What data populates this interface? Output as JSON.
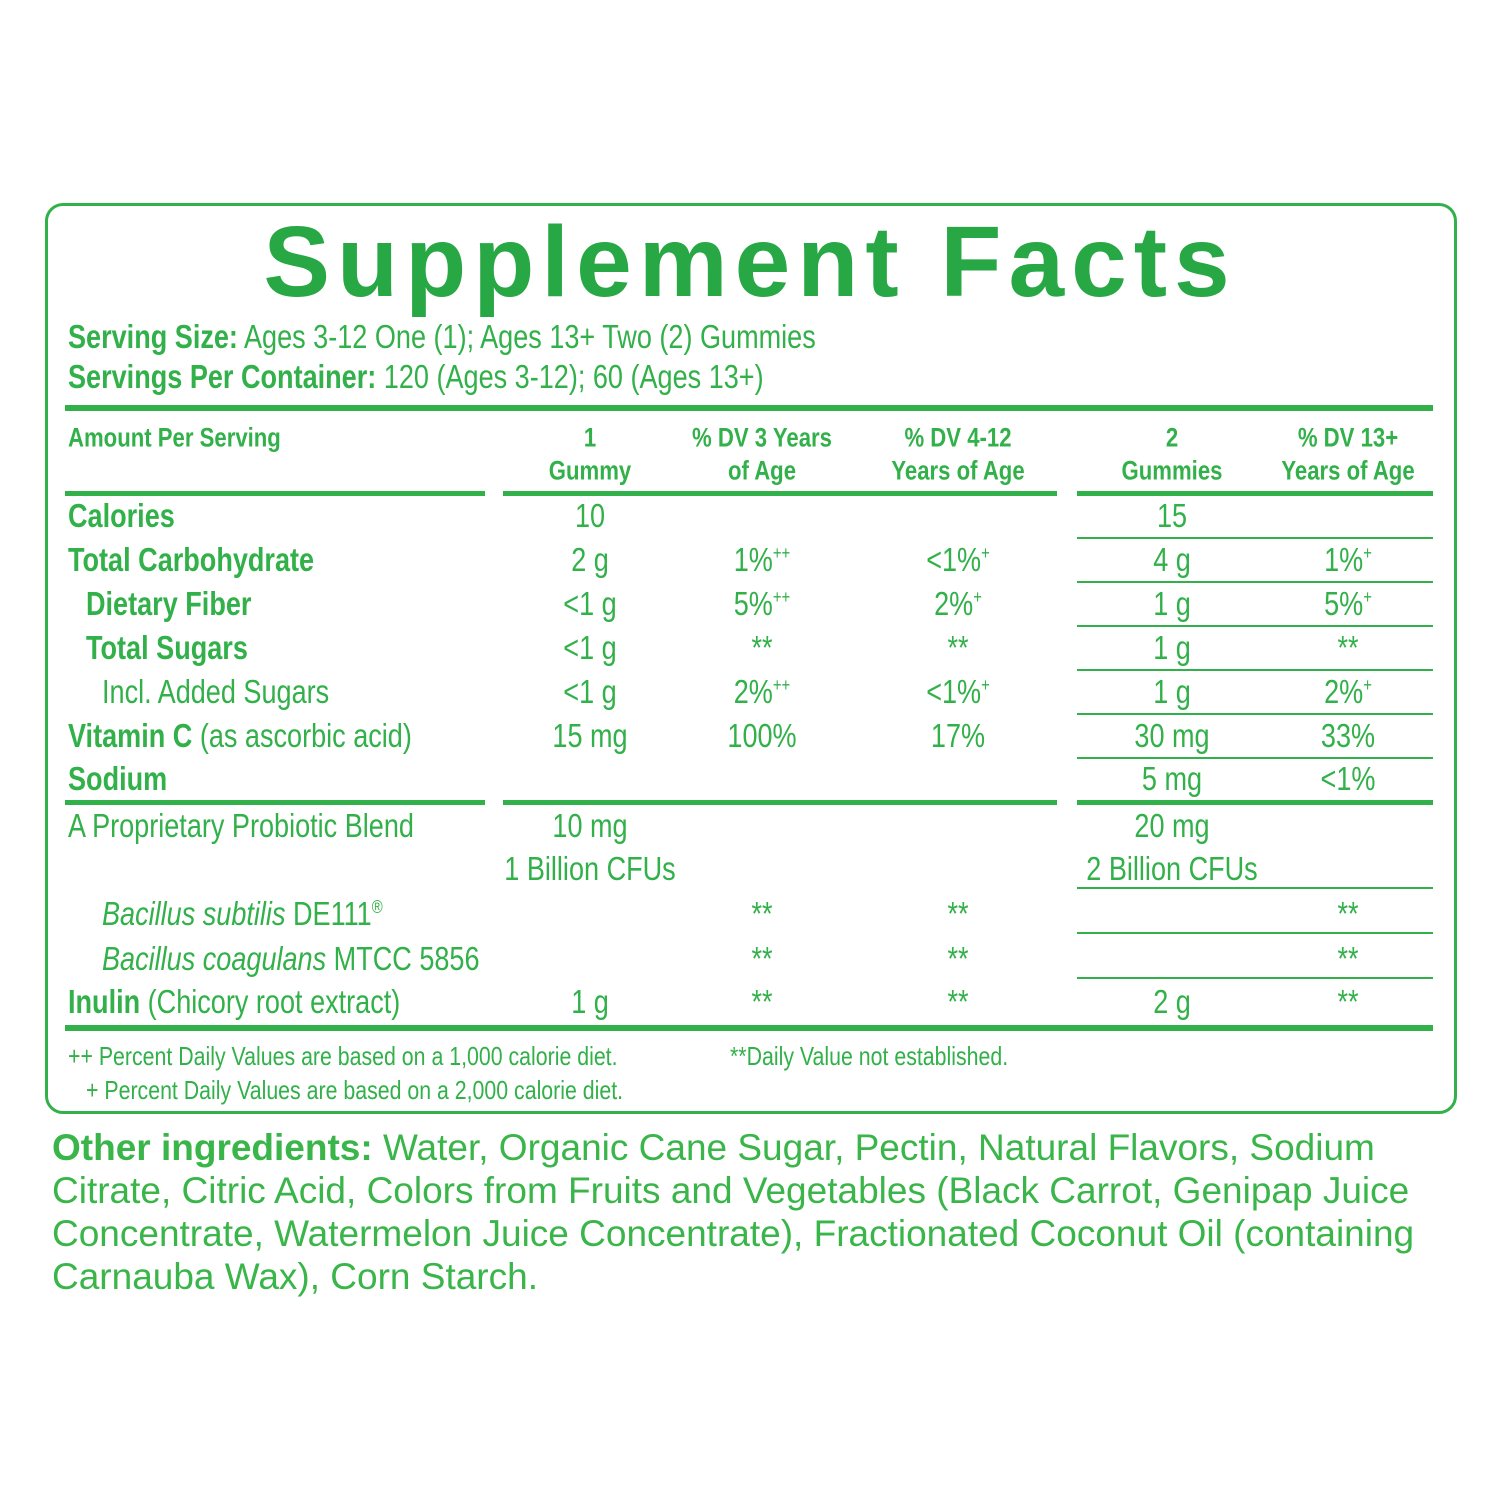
{
  "title": "Supplement Facts",
  "serving_size": {
    "label": "Serving Size:",
    "text": "Ages 3-12 One (1); Ages 13+ Two (2) Gummies"
  },
  "servings_per_container": {
    "label": "Servings Per Container:",
    "text": "120 (Ages 3-12); 60 (Ages 13+)"
  },
  "table": {
    "header": [
      [
        "Amount Per Serving"
      ],
      [
        "1",
        "Gummy"
      ],
      [
        "% DV 3 Years",
        "of Age"
      ],
      [
        "% DV 4-12",
        "Years of Age"
      ],
      [
        "2",
        "Gummies"
      ],
      [
        "% DV 13+",
        "Years of Age"
      ]
    ],
    "rows": [
      {
        "name": "Calories",
        "style": "bold",
        "indent": 0,
        "cells": [
          "10",
          null,
          null,
          "15",
          null
        ]
      },
      {
        "name": "Total Carbohydrate",
        "style": "bold",
        "indent": 0,
        "cells": [
          "2 g",
          {
            "text": "1%",
            "sup": "++"
          },
          {
            "text": "<1%",
            "sup": "+"
          },
          "4 g",
          {
            "text": "1%",
            "sup": "+"
          }
        ]
      },
      {
        "name": "Dietary Fiber",
        "style": "bold",
        "indent": 1,
        "cells": [
          "<1 g",
          {
            "text": "5%",
            "sup": "++"
          },
          {
            "text": "2%",
            "sup": "+"
          },
          "1 g",
          {
            "text": "5%",
            "sup": "+"
          }
        ]
      },
      {
        "name": "Total  Sugars",
        "style": "bold",
        "indent": 1,
        "cells": [
          "<1 g",
          "**",
          "**",
          "1 g",
          "**"
        ]
      },
      {
        "name": "Incl. Added Sugars",
        "style": "plain",
        "indent": 2,
        "cells": [
          "<1 g",
          {
            "text": "2%",
            "sup": "++"
          },
          {
            "text": "<1%",
            "sup": "+"
          },
          "1 g",
          {
            "text": "2%",
            "sup": "+"
          }
        ]
      },
      {
        "name": "Vitamin C",
        "rest": " (as ascorbic acid)",
        "style": "bold",
        "indent": 0,
        "cells": [
          "15 mg",
          "100%",
          "17%",
          "30 mg",
          "33%"
        ]
      },
      {
        "name": "Sodium",
        "style": "bold",
        "indent": 0,
        "cells": [
          null,
          null,
          null,
          "5 mg",
          "<1%"
        ]
      },
      {
        "name": "A Proprietary Probiotic Blend",
        "style": "plain",
        "indent": 0,
        "cells": [
          [
            "10 mg",
            "1 Billion CFUs"
          ],
          null,
          null,
          [
            "20 mg",
            "2 Billion CFUs"
          ],
          null
        ]
      },
      {
        "name": "Bacillus subtilis",
        "rest": " DE111",
        "sup": "®",
        "style": "italic",
        "indent": 2,
        "cells": [
          null,
          "**",
          "**",
          null,
          "**"
        ]
      },
      {
        "name": "Bacillus coagulans",
        "rest": " MTCC 5856",
        "style": "italic",
        "indent": 2,
        "cells": [
          null,
          "**",
          "**",
          null,
          "**"
        ]
      },
      {
        "name": "Inulin",
        "rest": " (Chicory root extract)",
        "style": "bold",
        "indent": 0,
        "cells": [
          "1 g",
          "**",
          "**",
          "2 g",
          "**"
        ]
      }
    ]
  },
  "footnotes": [
    "++ Percent Daily Values are based on a 1,000 calorie diet.",
    "+ Percent Daily Values are based on a 2,000 calorie diet.",
    "**Daily Value not established."
  ],
  "other_ingredients": {
    "label": "Other ingredients:",
    "text": " Water, Organic Cane Sugar, Pectin, Natural Flavors, Sodium Citrate, Citric Acid, Colors from Fruits and Vegetables (Black Carrot, Genipap Juice Concentrate, Watermelon Juice Concentrate), Fractionated Coconut Oil (containing Carnauba Wax), Corn Starch."
  }
}
